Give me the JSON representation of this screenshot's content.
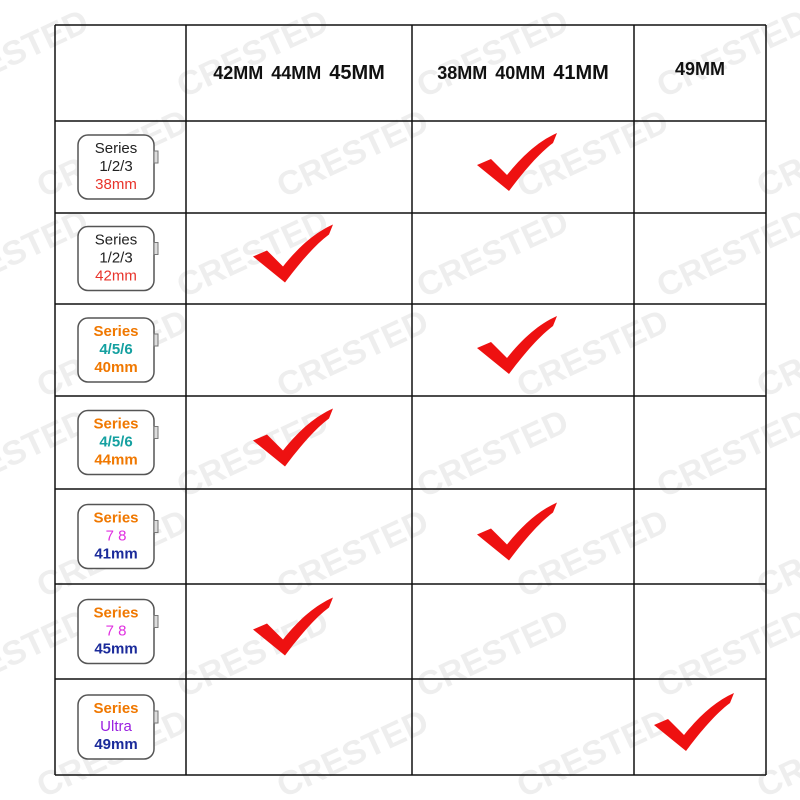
{
  "watermark": "CRESTED",
  "table": {
    "columns": [
      [
        "42MM",
        "44MM",
        "45MM"
      ],
      [
        "38MM",
        "40MM",
        "41MM"
      ],
      [
        "49MM"
      ]
    ],
    "rows": [
      {
        "lines": [
          {
            "text": "Series",
            "color": "#222222",
            "bold": false
          },
          {
            "text": "1/2/3",
            "color": "#222222",
            "bold": false
          },
          {
            "text": "38mm",
            "color": "#e8332a",
            "bold": false
          }
        ],
        "checks": [
          false,
          true,
          false
        ]
      },
      {
        "lines": [
          {
            "text": "Series",
            "color": "#222222",
            "bold": false
          },
          {
            "text": "1/2/3",
            "color": "#222222",
            "bold": false
          },
          {
            "text": "42mm",
            "color": "#e8332a",
            "bold": false
          }
        ],
        "checks": [
          true,
          false,
          false
        ]
      },
      {
        "lines": [
          {
            "text": "Series",
            "color": "#f07800",
            "bold": true
          },
          {
            "text": "4/5/6",
            "color": "#14a0a0",
            "bold": true
          },
          {
            "text": "40mm",
            "color": "#f07800",
            "bold": true
          }
        ],
        "checks": [
          false,
          true,
          false
        ]
      },
      {
        "lines": [
          {
            "text": "Series",
            "color": "#f07800",
            "bold": true
          },
          {
            "text": "4/5/6",
            "color": "#14a0a0",
            "bold": true
          },
          {
            "text": "44mm",
            "color": "#f07800",
            "bold": true
          }
        ],
        "checks": [
          true,
          false,
          false
        ]
      },
      {
        "lines": [
          {
            "text": "Series",
            "color": "#f07800",
            "bold": true
          },
          {
            "text": "7 8",
            "color": "#e030e0",
            "bold": false
          },
          {
            "text": "41mm",
            "color": "#1a2a9a",
            "bold": true
          }
        ],
        "checks": [
          false,
          true,
          false
        ]
      },
      {
        "lines": [
          {
            "text": "Series",
            "color": "#f07800",
            "bold": true
          },
          {
            "text": "7 8",
            "color": "#e030e0",
            "bold": false
          },
          {
            "text": "45mm",
            "color": "#1a2a9a",
            "bold": true
          }
        ],
        "checks": [
          true,
          false,
          false
        ]
      },
      {
        "lines": [
          {
            "text": "Series",
            "color": "#f07800",
            "bold": true
          },
          {
            "text": "Ultra",
            "color": "#9a20e0",
            "bold": false
          },
          {
            "text": "49mm",
            "color": "#1a2a9a",
            "bold": true
          }
        ],
        "checks": [
          false,
          false,
          true
        ]
      }
    ]
  }
}
